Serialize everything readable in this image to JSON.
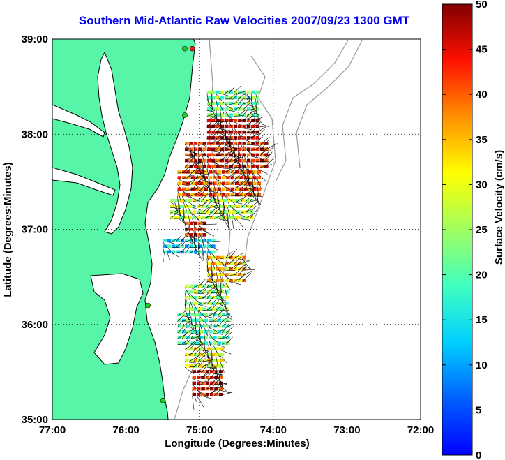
{
  "title": "Southern Mid-Atlantic Raw Velocities 2007/09/23 1300 GMT",
  "xlabel": "Longitude (Degrees:Minutes)",
  "ylabel": "Latitude (Degrees:Minutes)",
  "x_ticks": [
    "77:00",
    "76:00",
    "75:00",
    "74:00",
    "73:00",
    "72:00"
  ],
  "y_ticks": [
    "39:00",
    "38:00",
    "37:00",
    "36:00",
    "35:00"
  ],
  "colorbar": {
    "label": "Surface Velocity (cm/s)",
    "ticks": [
      "0",
      "5",
      "10",
      "15",
      "20",
      "25",
      "30",
      "35",
      "40",
      "45",
      "50"
    ],
    "range": [
      0,
      50
    ]
  },
  "colors": {
    "land": "#57f5a8",
    "water": "#ffffff",
    "coast": "#000000",
    "bathymetry": "#9a9a9a",
    "grid": "#000000",
    "title": "#0000ee",
    "station_green": "#22cc22",
    "station_red": "#e02020"
  },
  "map_extent": {
    "lon": [
      -77,
      -72
    ],
    "lat": [
      35,
      39
    ]
  },
  "chart_data": {
    "type": "heatmap",
    "title": "Southern Mid-Atlantic Raw Velocities 2007/09/23 1300 GMT",
    "xlabel": "Longitude (Degrees:Minutes)",
    "ylabel": "Latitude (Degrees:Minutes)",
    "xlim": [
      -77,
      -72
    ],
    "ylim": [
      35,
      39
    ],
    "colorbar_range": [
      0,
      50
    ],
    "colorbar_label": "Surface Velocity (cm/s)",
    "regions": [
      {
        "lat": 38.2,
        "lon_west": -74.9,
        "lon_east": -74.2,
        "speed": 22
      },
      {
        "lat": 38.1,
        "lon_west": -74.9,
        "lon_east": -74.2,
        "speed": 47
      },
      {
        "lat": 37.8,
        "lon_west": -75.2,
        "lon_east": -74.1,
        "speed": 44
      },
      {
        "lat": 37.5,
        "lon_west": -75.3,
        "lon_east": -74.2,
        "speed": 40
      },
      {
        "lat": 37.2,
        "lon_west": -75.4,
        "lon_east": -74.3,
        "speed": 27
      },
      {
        "lat": 37.0,
        "lon_west": -75.2,
        "lon_east": -74.9,
        "speed": 45
      },
      {
        "lat": 36.8,
        "lon_west": -75.5,
        "lon_east": -74.8,
        "speed": 14
      },
      {
        "lat": 36.6,
        "lon_west": -74.9,
        "lon_east": -74.4,
        "speed": 34
      },
      {
        "lat": 36.3,
        "lon_west": -75.2,
        "lon_east": -74.6,
        "speed": 24
      },
      {
        "lat": 35.9,
        "lon_west": -75.3,
        "lon_east": -74.6,
        "speed": 20
      },
      {
        "lat": 35.6,
        "lon_west": -75.2,
        "lon_east": -74.7,
        "speed": 30
      },
      {
        "lat": 35.4,
        "lon_west": -75.1,
        "lon_east": -74.7,
        "speed": 45
      }
    ],
    "stations": [
      {
        "lon": -75.1,
        "lat": 38.9,
        "color": "red"
      },
      {
        "lon": -75.2,
        "lat": 38.9,
        "color": "green"
      },
      {
        "lon": -75.2,
        "lat": 38.2,
        "color": "green"
      },
      {
        "lon": -75.7,
        "lat": 36.2,
        "color": "green"
      },
      {
        "lon": -75.5,
        "lat": 35.2,
        "color": "green"
      }
    ]
  }
}
